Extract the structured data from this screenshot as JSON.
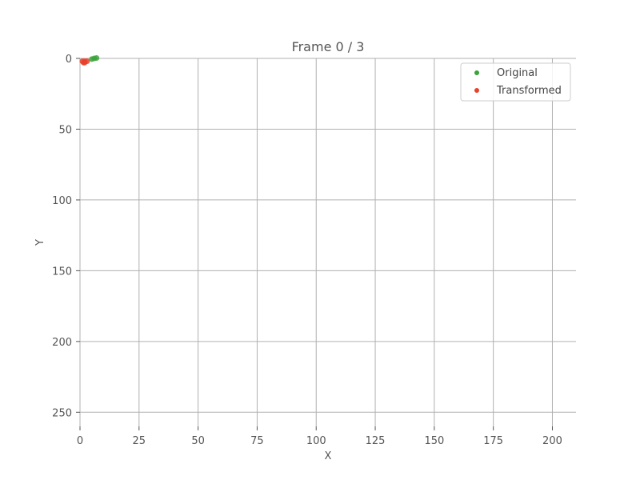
{
  "chart_data": {
    "type": "scatter",
    "title": "Frame 0 / 3",
    "xlabel": "X",
    "ylabel": "Y",
    "xlim": [
      0,
      210
    ],
    "ylim": [
      260,
      0
    ],
    "y_inverted": true,
    "x_ticks": [
      0,
      25,
      50,
      75,
      100,
      125,
      150,
      175,
      200
    ],
    "y_ticks": [
      0,
      50,
      100,
      150,
      200,
      250
    ],
    "grid": true,
    "legend_position": "top-right",
    "series": [
      {
        "name": "Original",
        "color": "#3aa33a",
        "points": [
          [
            6,
            0
          ],
          [
            5,
            0.5
          ],
          [
            7,
            -0.3
          ]
        ]
      },
      {
        "name": "Transformed",
        "color": "#e8412c",
        "points": [
          [
            1,
            2
          ],
          [
            1.5,
            3
          ],
          [
            2,
            2
          ],
          [
            3,
            2
          ],
          [
            2,
            3
          ]
        ]
      }
    ]
  }
}
